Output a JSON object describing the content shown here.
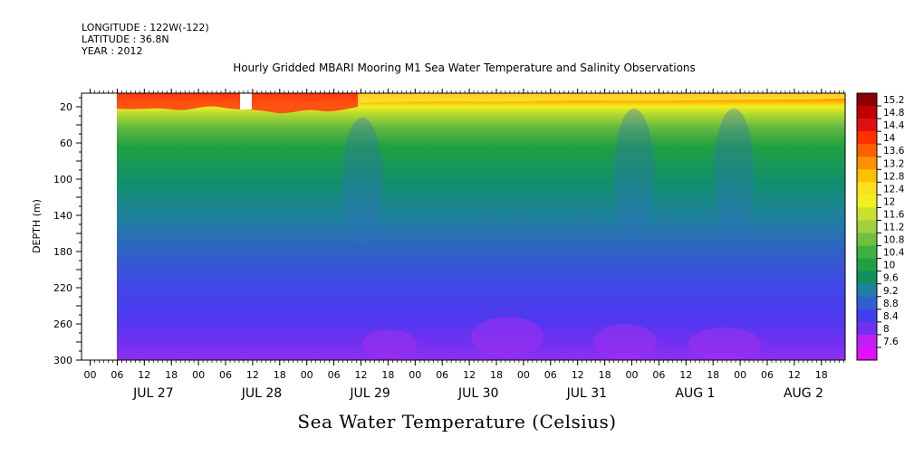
{
  "header": {
    "longitude": "LONGITUDE : 122W(-122)",
    "latitude": "LATITUDE : 36.8N",
    "year": "YEAR : 2012"
  },
  "title": "Hourly Gridded MBARI Mooring M1 Sea Water Temperature and Salinity Observations",
  "footer_label": "Sea Water Temperature (Celsius)",
  "chart_data": {
    "type": "heatmap",
    "title": "Hourly Gridded MBARI Mooring M1 Sea Water Temperature and Salinity Observations",
    "xlabel": "",
    "ylabel": "DEPTH (m)",
    "colorbar_label": "Sea Water Temperature (Celsius)",
    "y_ticks": [
      "20",
      "60",
      "100",
      "140",
      "180",
      "220",
      "260",
      "300"
    ],
    "ylim": [
      300,
      5
    ],
    "hour_ticks": [
      "00",
      "06",
      "12",
      "18",
      "00",
      "06",
      "12",
      "18",
      "00",
      "06",
      "12",
      "18",
      "00",
      "06",
      "12",
      "18",
      "00",
      "06",
      "12",
      "18",
      "00",
      "06",
      "12",
      "18",
      "00",
      "06",
      "12",
      "18"
    ],
    "day_labels": [
      "JUL 27",
      "JUL 28",
      "JUL 29",
      "JUL 30",
      "JUL 31",
      "AUG  1",
      "AUG  2"
    ],
    "colorbar_levels": [
      "15.2",
      "14.8",
      "14.4",
      "14",
      "13.6",
      "13.2",
      "12.8",
      "12.4",
      "12",
      "11.6",
      "11.2",
      "10.8",
      "10.4",
      "10",
      "9.6",
      "9.2",
      "8.8",
      "8.4",
      "8",
      "7.6"
    ],
    "colors": [
      "#8b0000",
      "#c00000",
      "#e01010",
      "#ff3000",
      "#ff6000",
      "#ff9000",
      "#ffc000",
      "#ffe020",
      "#f0f020",
      "#c8e030",
      "#a0d040",
      "#70c040",
      "#40b040",
      "#20a040",
      "#109060",
      "#2080a0",
      "#3060d0",
      "#4040f0",
      "#7030f0",
      "#c020f0",
      "#e010ff"
    ],
    "data_start": "JUL 27 06",
    "missing": [
      "JUL 27 00 to JUL 27 06, all depths",
      "near JUL 28 10, top layer"
    ],
    "surface_warm_range": [
      12,
      15.2
    ],
    "deep_cold_range": [
      7.6,
      8.8
    ]
  }
}
